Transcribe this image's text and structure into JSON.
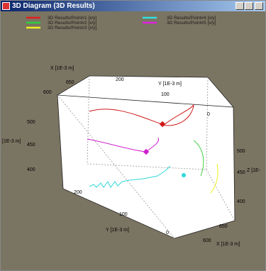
{
  "window": {
    "title": "3D Diagram (3D Results)"
  },
  "legend": [
    "3D Results/Point#1 [x/y]",
    "3D Results/Point#2 [x/y]",
    "3D Results/Point#3 [x/y]",
    "3D Results/Point#4 [x/y]",
    "3D Results/Point#5 [x/y]"
  ],
  "axes": {
    "x_label_top": "X [1E-3 m]",
    "x_ticks_top": [
      "650",
      "600"
    ],
    "y_label_top": "Y [1E-3 m]",
    "y_ticks_top": [
      "200",
      "100",
      "0"
    ],
    "z_label_left": "[1E-3 m]",
    "z_ticks_left": [
      "500",
      "450",
      "400"
    ],
    "z_label_right": "Z [1E-",
    "z_ticks_right": [
      "500",
      "450",
      "400"
    ],
    "y_label_bottom": "Y [1E-3 m]",
    "y_ticks_bottom": [
      "200",
      "100",
      "0"
    ],
    "x_label_bottom": "X [1E-3 m]",
    "x_ticks_bottom": [
      "650",
      "600"
    ]
  }
}
